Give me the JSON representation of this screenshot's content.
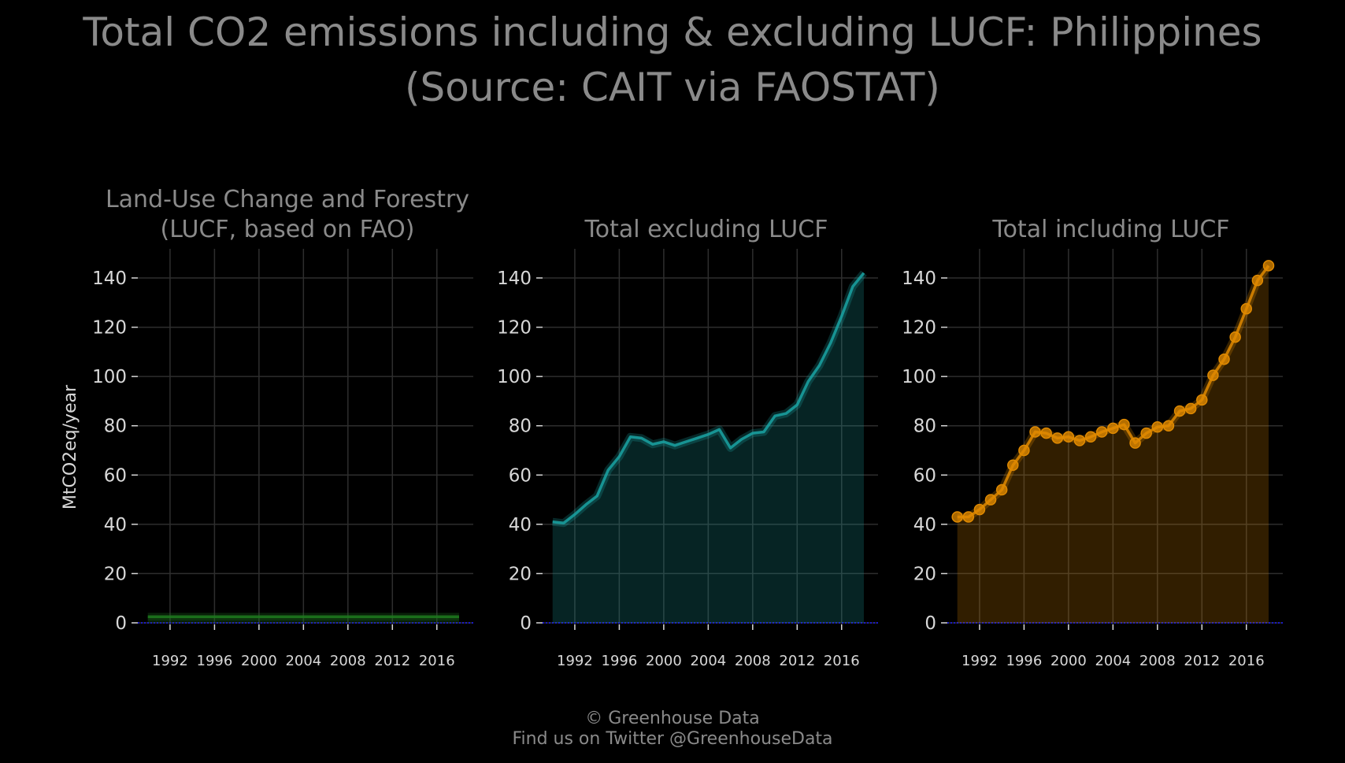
{
  "title_line1": "Total CO2 emissions including & excluding LUCF: Philippines",
  "title_line2": "(Source: CAIT via FAOSTAT)",
  "footer_line1": "© Greenhouse Data",
  "footer_line2": "Find us on Twitter @GreenhouseData",
  "chart_data": [
    {
      "type": "area",
      "title_lines": [
        "Land-Use Change and Forestry",
        "(LUCF, based on FAO)"
      ],
      "ylabel": "MtCO2eq/year",
      "ylim": [
        0,
        150
      ],
      "xlim": [
        1990,
        2018
      ],
      "yticks": [
        0,
        20,
        40,
        60,
        80,
        100,
        120,
        140
      ],
      "xticks": [
        1992,
        1996,
        2000,
        2004,
        2008,
        2012,
        2016
      ],
      "color": "#1f7a1f",
      "markers": false,
      "grid": true,
      "x": [
        1990,
        1991,
        1992,
        1993,
        1994,
        1995,
        1996,
        1997,
        1998,
        1999,
        2000,
        2001,
        2002,
        2003,
        2004,
        2005,
        2006,
        2007,
        2008,
        2009,
        2010,
        2011,
        2012,
        2013,
        2014,
        2015,
        2016,
        2017,
        2018
      ],
      "values": [
        2.5,
        2.5,
        2.5,
        2.5,
        2.5,
        2.5,
        2.5,
        2.5,
        2.5,
        2.5,
        2.5,
        2.5,
        2.5,
        2.5,
        2.5,
        2.5,
        2.5,
        2.5,
        2.5,
        2.5,
        2.5,
        2.5,
        2.5,
        2.5,
        2.5,
        2.5,
        2.5,
        2.5,
        2.5
      ]
    },
    {
      "type": "area",
      "title_lines": [
        "Total excluding LUCF"
      ],
      "ylabel": "",
      "ylim": [
        0,
        150
      ],
      "xlim": [
        1990,
        2018
      ],
      "yticks": [
        0,
        20,
        40,
        60,
        80,
        100,
        120,
        140
      ],
      "xticks": [
        1992,
        1996,
        2000,
        2004,
        2008,
        2012,
        2016
      ],
      "color": "#1aa3a3",
      "markers": false,
      "grid": true,
      "x": [
        1990,
        1991,
        1992,
        1993,
        1994,
        1995,
        1996,
        1997,
        1998,
        1999,
        2000,
        2001,
        2002,
        2003,
        2004,
        2005,
        2006,
        2007,
        2008,
        2009,
        2010,
        2011,
        2012,
        2013,
        2014,
        2015,
        2016,
        2017,
        2018
      ],
      "values": [
        41,
        40.5,
        44,
        48,
        51.5,
        62,
        67.5,
        75.5,
        75,
        72.5,
        73.5,
        72,
        73.5,
        75,
        76.5,
        78.5,
        71,
        74.5,
        77,
        77.5,
        84,
        85,
        88.5,
        98,
        104.5,
        113.5,
        124.5,
        136.5,
        142
      ]
    },
    {
      "type": "area",
      "title_lines": [
        "Total including LUCF"
      ],
      "ylabel": "",
      "ylim": [
        0,
        150
      ],
      "xlim": [
        1990,
        2018
      ],
      "yticks": [
        0,
        20,
        40,
        60,
        80,
        100,
        120,
        140
      ],
      "xticks": [
        1992,
        1996,
        2000,
        2004,
        2008,
        2012,
        2016
      ],
      "color": "#e08a00",
      "markers": true,
      "grid": true,
      "x": [
        1990,
        1991,
        1992,
        1993,
        1994,
        1995,
        1996,
        1997,
        1998,
        1999,
        2000,
        2001,
        2002,
        2003,
        2004,
        2005,
        2006,
        2007,
        2008,
        2009,
        2010,
        2011,
        2012,
        2013,
        2014,
        2015,
        2016,
        2017,
        2018
      ],
      "values": [
        43,
        43,
        46,
        50,
        54,
        64,
        70,
        77.5,
        77,
        75,
        75.5,
        74,
        75.5,
        77.5,
        79,
        80.5,
        73,
        77,
        79.5,
        80,
        86,
        87,
        90.5,
        100.5,
        107,
        116,
        127.5,
        139,
        145
      ]
    }
  ]
}
